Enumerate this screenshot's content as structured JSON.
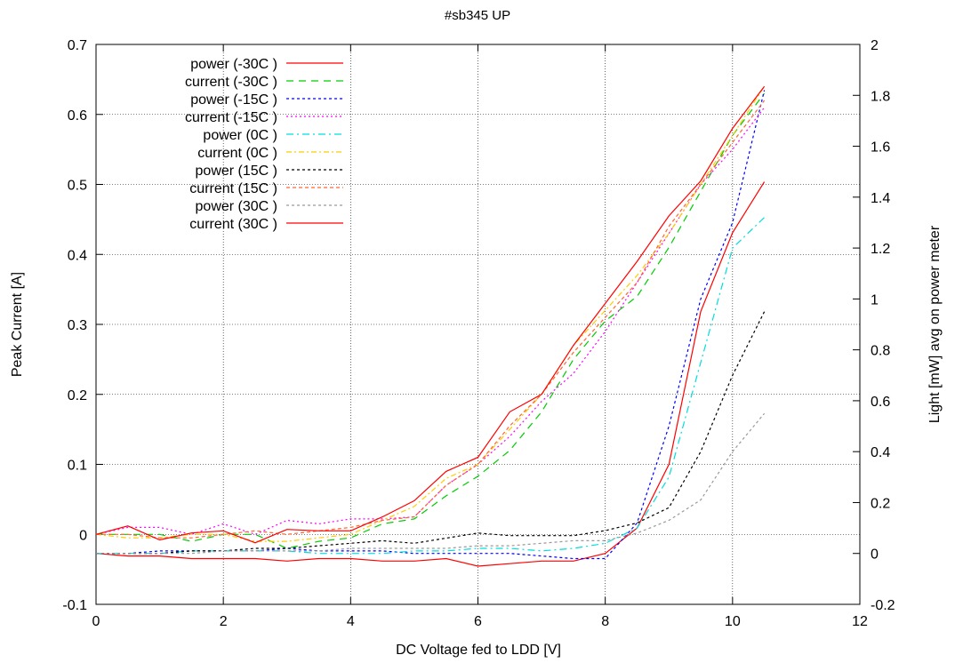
{
  "chart_data": {
    "type": "line",
    "title": "#sb345 UP",
    "xlabel": "DC Voltage fed to LDD [V]",
    "ylabel": "Peak Current [A]",
    "y2label": "Light [mW] avg on power meter",
    "xlim": [
      0,
      12
    ],
    "ylim": [
      -0.1,
      0.7
    ],
    "y2lim": [
      -0.2,
      2
    ],
    "x_ticks": [
      "0",
      "2",
      "4",
      "6",
      "8",
      "10",
      "12"
    ],
    "y_ticks": [
      "-0.1",
      "0",
      "0.1",
      "0.2",
      "0.3",
      "0.4",
      "0.5",
      "0.6",
      "0.7"
    ],
    "y2_ticks": [
      "-0.2",
      "0",
      "0.2",
      "0.4",
      "0.6",
      "0.8",
      "1",
      "1.2",
      "1.4",
      "1.6",
      "1.8",
      "2"
    ],
    "grid": true,
    "legend_position": "top-left",
    "series": [
      {
        "name": "power (-30C )",
        "axis": "y2",
        "color": "#ff0000",
        "dash": "solid",
        "x": [
          0,
          0.5,
          1,
          1.5,
          2,
          2.5,
          3,
          3.5,
          4,
          4.5,
          5,
          5.5,
          6,
          6.5,
          7,
          7.5,
          8,
          8.5,
          9,
          9.5,
          10,
          10.5
        ],
        "y": [
          0.0,
          -0.01,
          -0.01,
          -0.02,
          -0.02,
          -0.02,
          -0.03,
          -0.02,
          -0.02,
          -0.03,
          -0.03,
          -0.02,
          -0.05,
          -0.04,
          -0.03,
          -0.03,
          0.0,
          0.1,
          0.35,
          0.95,
          1.26,
          1.46
        ]
      },
      {
        "name": "current (-30C )",
        "axis": "y",
        "color": "#00cc00",
        "dash": "8,6",
        "x": [
          0,
          0.5,
          1,
          1.5,
          2,
          2.5,
          3,
          3.5,
          4,
          4.5,
          5,
          5.5,
          6,
          6.5,
          7,
          7.5,
          8,
          8.5,
          9,
          9.5,
          10,
          10.5
        ],
        "y": [
          0.0,
          0.0,
          0.0,
          -0.01,
          0.0,
          0.0,
          -0.02,
          -0.01,
          -0.005,
          0.015,
          0.022,
          0.055,
          0.083,
          0.12,
          0.175,
          0.25,
          0.305,
          0.34,
          0.41,
          0.49,
          0.57,
          0.63
        ]
      },
      {
        "name": "power (-15C )",
        "axis": "y2",
        "color": "#0000ff",
        "dash": "3,3",
        "x": [
          0,
          0.5,
          1,
          1.5,
          2,
          2.5,
          3,
          3.5,
          4,
          4.5,
          5,
          5.5,
          6,
          6.5,
          7,
          7.5,
          8,
          8.5,
          9,
          9.5,
          10,
          10.5
        ],
        "y": [
          0.0,
          0.0,
          0.01,
          0.01,
          0.01,
          0.01,
          0.02,
          0.01,
          0.01,
          0.01,
          0.0,
          0.0,
          0.0,
          0.0,
          -0.01,
          -0.02,
          -0.02,
          0.12,
          0.5,
          1.0,
          1.3,
          1.82
        ]
      },
      {
        "name": "current (-15C )",
        "axis": "y",
        "color": "#ff00ff",
        "dash": "2,3",
        "x": [
          0,
          0.5,
          1,
          1.5,
          2,
          2.5,
          3,
          3.5,
          4,
          4.5,
          5,
          5.5,
          6,
          6.5,
          7,
          7.5,
          8,
          8.5,
          9,
          9.5,
          10,
          10.5
        ],
        "y": [
          0.0,
          0.01,
          0.01,
          0.0,
          0.015,
          0.0,
          0.02,
          0.015,
          0.022,
          0.022,
          0.025,
          0.07,
          0.1,
          0.14,
          0.19,
          0.23,
          0.29,
          0.36,
          0.43,
          0.5,
          0.55,
          0.61
        ]
      },
      {
        "name": "power (0C )",
        "axis": "y2",
        "color": "#00dddd",
        "dash": "8,4,2,4",
        "x": [
          0,
          0.5,
          1,
          1.5,
          2,
          2.5,
          3,
          3.5,
          4,
          4.5,
          5,
          5.5,
          6,
          6.5,
          7,
          7.5,
          8,
          8.5,
          9,
          9.5,
          10,
          10.5
        ],
        "y": [
          0.0,
          0.0,
          0.0,
          0.01,
          0.01,
          0.01,
          0.01,
          0.0,
          0.0,
          0.0,
          0.01,
          0.01,
          0.02,
          0.02,
          0.01,
          0.02,
          0.04,
          0.1,
          0.3,
          0.75,
          1.2,
          1.32
        ]
      },
      {
        "name": "current (0C )",
        "axis": "y",
        "color": "#ffcc00",
        "dash": "6,3,2,3",
        "x": [
          0,
          0.5,
          1,
          1.5,
          2,
          2.5,
          3,
          3.5,
          4,
          4.5,
          5,
          5.5,
          6,
          6.5,
          7,
          7.5,
          8,
          8.5,
          9,
          9.5,
          10,
          10.5
        ],
        "y": [
          0.0,
          -0.005,
          -0.005,
          0.0,
          0.0,
          -0.01,
          -0.01,
          -0.005,
          0.0,
          0.02,
          0.04,
          0.08,
          0.1,
          0.15,
          0.2,
          0.27,
          0.32,
          0.37,
          0.43,
          0.5,
          0.57,
          0.64
        ]
      },
      {
        "name": "power (15C )",
        "axis": "y2",
        "color": "#000000",
        "dash": "3,3",
        "x": [
          0,
          0.5,
          1,
          1.5,
          2,
          2.5,
          3,
          3.5,
          4,
          4.5,
          5,
          5.5,
          6,
          6.5,
          7,
          7.5,
          8,
          8.5,
          9,
          9.5,
          10,
          10.5
        ],
        "y": [
          0.0,
          0.0,
          0.0,
          0.01,
          0.01,
          0.02,
          0.02,
          0.03,
          0.04,
          0.05,
          0.04,
          0.06,
          0.08,
          0.07,
          0.07,
          0.07,
          0.09,
          0.12,
          0.18,
          0.4,
          0.7,
          0.95
        ]
      },
      {
        "name": "current (15C )",
        "axis": "y",
        "color": "#ff6633",
        "dash": "4,3",
        "x": [
          0,
          0.5,
          1,
          1.5,
          2,
          2.5,
          3,
          3.5,
          4,
          4.5,
          5,
          5.5,
          6,
          6.5,
          7,
          7.5,
          8,
          8.5,
          9,
          9.5,
          10,
          10.5
        ],
        "y": [
          0.0,
          0.0,
          -0.005,
          -0.005,
          0.0,
          0.005,
          0.0,
          0.005,
          0.01,
          0.02,
          0.025,
          0.07,
          0.1,
          0.155,
          0.2,
          0.26,
          0.31,
          0.36,
          0.44,
          0.5,
          0.56,
          0.62
        ]
      },
      {
        "name": "power (30C )",
        "axis": "y2",
        "color": "#999999",
        "dash": "3,3",
        "x": [
          0,
          0.5,
          1,
          1.5,
          2,
          2.5,
          3,
          3.5,
          4,
          4.5,
          5,
          5.5,
          6,
          6.5,
          7,
          7.5,
          8,
          8.5,
          9,
          9.5,
          10,
          10.5
        ],
        "y": [
          0.0,
          0.0,
          0.0,
          0.0,
          0.01,
          0.01,
          0.01,
          0.01,
          0.02,
          0.02,
          0.02,
          0.02,
          0.03,
          0.03,
          0.04,
          0.05,
          0.05,
          0.08,
          0.13,
          0.21,
          0.4,
          0.55
        ]
      },
      {
        "name": "current (30C )",
        "axis": "y",
        "color": "#ff0000",
        "dash": "solid",
        "x": [
          0,
          0.5,
          1,
          1.5,
          2,
          2.5,
          3,
          3.5,
          4,
          4.5,
          5,
          5.5,
          6,
          6.5,
          7,
          7.5,
          8,
          8.5,
          9,
          9.5,
          10,
          10.5
        ],
        "y": [
          0.0,
          0.012,
          -0.008,
          0.002,
          0.005,
          -0.012,
          0.007,
          0.005,
          0.005,
          0.025,
          0.048,
          0.09,
          0.11,
          0.175,
          0.2,
          0.27,
          0.33,
          0.39,
          0.455,
          0.505,
          0.58,
          0.64
        ]
      }
    ]
  }
}
